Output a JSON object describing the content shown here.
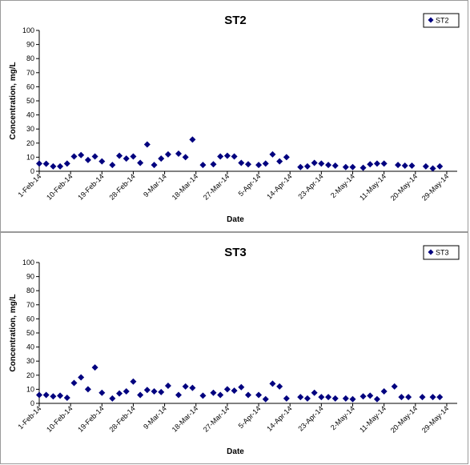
{
  "colors": {
    "marker": "#00007f",
    "axis": "#000000",
    "legend_border": "#000000"
  },
  "chart_data": [
    {
      "type": "scatter",
      "title": "ST2",
      "xlabel": "Date",
      "ylabel": "Concentration, mg/L",
      "ylim": [
        0,
        100
      ],
      "ytick_step": 10,
      "xlim": [
        "2014-02-01",
        "2014-06-01"
      ],
      "xtick_labels": [
        "1-Feb-14",
        "10-Feb-14",
        "19-Feb-14",
        "28-Feb-14",
        "9-Mar-14",
        "18-Mar-14",
        "27-Mar-14",
        "5-Apr-14",
        "14-Apr-14",
        "23-Apr-14",
        "2-May-14",
        "11-May-14",
        "20-May-14",
        "29-May-14"
      ],
      "grid": false,
      "legend": {
        "position": "top-right",
        "entries": [
          "ST2"
        ]
      },
      "series": [
        {
          "name": "ST2",
          "marker": "diamond",
          "points": [
            [
              "2014-02-01",
              5.5
            ],
            [
              "2014-02-03",
              5.3
            ],
            [
              "2014-02-05",
              3.5
            ],
            [
              "2014-02-07",
              3.5
            ],
            [
              "2014-02-09",
              5.5
            ],
            [
              "2014-02-11",
              10.5
            ],
            [
              "2014-02-13",
              11.5
            ],
            [
              "2014-02-15",
              8
            ],
            [
              "2014-02-17",
              10.5
            ],
            [
              "2014-02-19",
              7
            ],
            [
              "2014-02-22",
              4.5
            ],
            [
              "2014-02-24",
              11
            ],
            [
              "2014-02-26",
              9
            ],
            [
              "2014-02-28",
              10.5
            ],
            [
              "2014-03-02",
              6
            ],
            [
              "2014-03-04",
              19
            ],
            [
              "2014-03-06",
              4.5
            ],
            [
              "2014-03-08",
              9
            ],
            [
              "2014-03-10",
              12
            ],
            [
              "2014-03-13",
              12.5
            ],
            [
              "2014-03-15",
              10
            ],
            [
              "2014-03-17",
              22.5
            ],
            [
              "2014-03-20",
              4.5
            ],
            [
              "2014-03-23",
              5
            ],
            [
              "2014-03-25",
              10.5
            ],
            [
              "2014-03-27",
              11
            ],
            [
              "2014-03-29",
              10.5
            ],
            [
              "2014-03-31",
              6
            ],
            [
              "2014-04-02",
              5
            ],
            [
              "2014-04-05",
              4.5
            ],
            [
              "2014-04-07",
              5.5
            ],
            [
              "2014-04-09",
              12
            ],
            [
              "2014-04-11",
              7
            ],
            [
              "2014-04-13",
              10
            ],
            [
              "2014-04-17",
              3
            ],
            [
              "2014-04-19",
              3.5
            ],
            [
              "2014-04-21",
              6
            ],
            [
              "2014-04-23",
              5.5
            ],
            [
              "2014-04-25",
              4.5
            ],
            [
              "2014-04-27",
              4
            ],
            [
              "2014-04-30",
              3
            ],
            [
              "2014-05-02",
              3
            ],
            [
              "2014-05-05",
              2.5
            ],
            [
              "2014-05-07",
              5
            ],
            [
              "2014-05-09",
              5.5
            ],
            [
              "2014-05-11",
              5.5
            ],
            [
              "2014-05-15",
              4.5
            ],
            [
              "2014-05-17",
              4
            ],
            [
              "2014-05-19",
              4
            ],
            [
              "2014-05-23",
              3.5
            ],
            [
              "2014-05-25",
              2
            ],
            [
              "2014-05-27",
              3.5
            ]
          ]
        }
      ]
    },
    {
      "type": "scatter",
      "title": "ST3",
      "xlabel": "Date",
      "ylabel": "Concentration, mg/L",
      "ylim": [
        0,
        100
      ],
      "ytick_step": 10,
      "xlim": [
        "2014-02-01",
        "2014-06-01"
      ],
      "xtick_labels": [
        "1-Feb-14",
        "10-Feb-14",
        "19-Feb-14",
        "28-Feb-14",
        "9-Mar-14",
        "18-Mar-14",
        "27-Mar-14",
        "5-Apr-14",
        "14-Apr-14",
        "23-Apr-14",
        "2-May-14",
        "11-May-14",
        "20-May-14",
        "29-May-14"
      ],
      "grid": false,
      "legend": {
        "position": "top-right",
        "entries": [
          "ST3"
        ]
      },
      "series": [
        {
          "name": "ST3",
          "marker": "diamond",
          "points": [
            [
              "2014-02-01",
              6
            ],
            [
              "2014-02-03",
              6
            ],
            [
              "2014-02-05",
              5
            ],
            [
              "2014-02-07",
              5.5
            ],
            [
              "2014-02-09",
              4
            ],
            [
              "2014-02-11",
              14.5
            ],
            [
              "2014-02-13",
              18.5
            ],
            [
              "2014-02-15",
              10
            ],
            [
              "2014-02-17",
              25.5
            ],
            [
              "2014-02-19",
              7.5
            ],
            [
              "2014-02-22",
              3.5
            ],
            [
              "2014-02-24",
              7
            ],
            [
              "2014-02-26",
              8.5
            ],
            [
              "2014-02-28",
              15.5
            ],
            [
              "2014-03-02",
              6
            ],
            [
              "2014-03-04",
              9.5
            ],
            [
              "2014-03-06",
              8.5
            ],
            [
              "2014-03-08",
              8
            ],
            [
              "2014-03-10",
              12.5
            ],
            [
              "2014-03-13",
              6
            ],
            [
              "2014-03-15",
              12
            ],
            [
              "2014-03-17",
              11
            ],
            [
              "2014-03-20",
              5.5
            ],
            [
              "2014-03-23",
              7.5
            ],
            [
              "2014-03-25",
              6
            ],
            [
              "2014-03-27",
              10
            ],
            [
              "2014-03-29",
              9
            ],
            [
              "2014-03-31",
              11.5
            ],
            [
              "2014-04-02",
              6
            ],
            [
              "2014-04-05",
              6
            ],
            [
              "2014-04-07",
              3
            ],
            [
              "2014-04-09",
              14
            ],
            [
              "2014-04-11",
              12
            ],
            [
              "2014-04-13",
              3.5
            ],
            [
              "2014-04-17",
              4.5
            ],
            [
              "2014-04-19",
              3.5
            ],
            [
              "2014-04-21",
              7.5
            ],
            [
              "2014-04-23",
              4.5
            ],
            [
              "2014-04-25",
              4.5
            ],
            [
              "2014-04-27",
              3.5
            ],
            [
              "2014-04-30",
              3.5
            ],
            [
              "2014-05-02",
              3
            ],
            [
              "2014-05-05",
              5
            ],
            [
              "2014-05-07",
              5.5
            ],
            [
              "2014-05-09",
              3
            ],
            [
              "2014-05-11",
              8.5
            ],
            [
              "2014-05-14",
              12
            ],
            [
              "2014-05-16",
              4.5
            ],
            [
              "2014-05-18",
              4.5
            ],
            [
              "2014-05-22",
              4.5
            ],
            [
              "2014-05-25",
              4.5
            ],
            [
              "2014-05-27",
              4.5
            ]
          ]
        }
      ]
    }
  ]
}
